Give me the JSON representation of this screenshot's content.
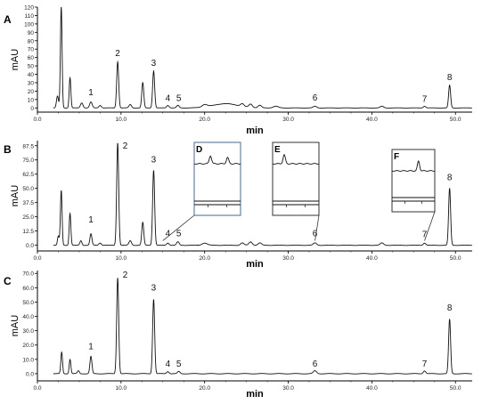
{
  "chart_data": [
    {
      "type": "line",
      "panel_label": "A",
      "xlabel": "min",
      "ylabel": "mAU",
      "xlim": [
        0,
        52
      ],
      "ylim": [
        -5,
        120
      ],
      "y_ticks": [
        "0",
        "10",
        "20",
        "30",
        "40",
        "50",
        "60",
        "70",
        "80",
        "90",
        "100",
        "110",
        "120"
      ],
      "y_tick_values": [
        0,
        10,
        20,
        30,
        40,
        50,
        60,
        70,
        80,
        90,
        100,
        110,
        120
      ],
      "x_ticks": [
        "0.0",
        "10.0",
        "20.0",
        "30.0",
        "40.0",
        "50.0"
      ],
      "x_tick_values": [
        0,
        10,
        20,
        30,
        40,
        50
      ],
      "peaks": [
        {
          "t": 2.4,
          "h": 14,
          "w": 0.12
        },
        {
          "t": 2.85,
          "h": 120,
          "w": 0.1
        },
        {
          "t": 3.9,
          "h": 36,
          "w": 0.1
        },
        {
          "t": 5.3,
          "h": 6,
          "w": 0.15
        },
        {
          "t": 6.4,
          "h": 7,
          "w": 0.15
        },
        {
          "t": 7.5,
          "h": 3,
          "w": 0.15
        },
        {
          "t": 9.6,
          "h": 55,
          "w": 0.12
        },
        {
          "t": 11.1,
          "h": 4,
          "w": 0.15
        },
        {
          "t": 12.6,
          "h": 30,
          "w": 0.12
        },
        {
          "t": 13.9,
          "h": 44,
          "w": 0.12
        },
        {
          "t": 15.6,
          "h": 3,
          "w": 0.15
        },
        {
          "t": 16.8,
          "h": 3,
          "w": 0.15
        },
        {
          "t": 20.0,
          "h": 3,
          "w": 0.3
        },
        {
          "t": 22.5,
          "h": 5,
          "w": 1.5
        },
        {
          "t": 24.5,
          "h": 3,
          "w": 0.2
        },
        {
          "t": 25.5,
          "h": 4,
          "w": 0.2
        },
        {
          "t": 26.6,
          "h": 3,
          "w": 0.2
        },
        {
          "t": 28.5,
          "h": 2,
          "w": 0.3
        },
        {
          "t": 33.2,
          "h": 2,
          "w": 0.2
        },
        {
          "t": 41.2,
          "h": 2,
          "w": 0.2
        },
        {
          "t": 46.3,
          "h": 2,
          "w": 0.15
        },
        {
          "t": 49.3,
          "h": 27,
          "w": 0.12
        }
      ],
      "peak_labels": [
        {
          "label": "1",
          "t": 6.4,
          "y": 15
        },
        {
          "label": "2",
          "t": 9.6,
          "y": 62
        },
        {
          "label": "3",
          "t": 13.9,
          "y": 50
        },
        {
          "label": "4",
          "t": 15.6,
          "y": 8
        },
        {
          "label": "5",
          "t": 16.9,
          "y": 8
        },
        {
          "label": "6",
          "t": 33.2,
          "y": 9
        },
        {
          "label": "7",
          "t": 46.3,
          "y": 7
        },
        {
          "label": "8",
          "t": 49.3,
          "y": 33
        }
      ]
    },
    {
      "type": "line",
      "panel_label": "B",
      "xlabel": "min",
      "ylabel": "mAU",
      "xlim": [
        0,
        52
      ],
      "ylim": [
        -5,
        92
      ],
      "y_ticks": [
        "0.0",
        "12.5",
        "25.0",
        "37.5",
        "50.0",
        "62.5",
        "75.0",
        "87.5"
      ],
      "y_tick_values": [
        0,
        12.5,
        25,
        37.5,
        50,
        62.5,
        75,
        87.5
      ],
      "x_ticks": [
        "0.0",
        "10.0",
        "20.0",
        "30.0",
        "40.0",
        "50.0"
      ],
      "x_tick_values": [
        0,
        10,
        20,
        30,
        40,
        50
      ],
      "peaks": [
        {
          "t": 2.5,
          "h": 8,
          "w": 0.1
        },
        {
          "t": 2.85,
          "h": 48,
          "w": 0.1
        },
        {
          "t": 3.9,
          "h": 28,
          "w": 0.1
        },
        {
          "t": 5.2,
          "h": 4,
          "w": 0.12
        },
        {
          "t": 6.4,
          "h": 10,
          "w": 0.12
        },
        {
          "t": 7.5,
          "h": 2,
          "w": 0.15
        },
        {
          "t": 9.6,
          "h": 90,
          "w": 0.12
        },
        {
          "t": 11.1,
          "h": 4,
          "w": 0.15
        },
        {
          "t": 12.6,
          "h": 20,
          "w": 0.12
        },
        {
          "t": 13.9,
          "h": 66,
          "w": 0.12
        },
        {
          "t": 15.6,
          "h": 2,
          "w": 0.15
        },
        {
          "t": 16.8,
          "h": 3,
          "w": 0.15
        },
        {
          "t": 20.0,
          "h": 2,
          "w": 0.3
        },
        {
          "t": 24.5,
          "h": 2,
          "w": 0.2
        },
        {
          "t": 25.5,
          "h": 3,
          "w": 0.2
        },
        {
          "t": 26.6,
          "h": 2,
          "w": 0.2
        },
        {
          "t": 33.2,
          "h": 2,
          "w": 0.2
        },
        {
          "t": 41.2,
          "h": 2,
          "w": 0.2
        },
        {
          "t": 46.3,
          "h": 2,
          "w": 0.15
        },
        {
          "t": 49.3,
          "h": 50,
          "w": 0.12
        }
      ],
      "peak_labels": [
        {
          "label": "1",
          "t": 6.4,
          "y": 20
        },
        {
          "label": "2",
          "t": 10.5,
          "y": 85
        },
        {
          "label": "3",
          "t": 13.9,
          "y": 73
        },
        {
          "label": "4",
          "t": 15.6,
          "y": 8
        },
        {
          "label": "5",
          "t": 16.9,
          "y": 8
        },
        {
          "label": "6",
          "t": 33.2,
          "y": 8
        },
        {
          "label": "7",
          "t": 46.3,
          "y": 7
        },
        {
          "label": "8",
          "t": 49.3,
          "y": 57
        }
      ],
      "insets": [
        {
          "label": "D",
          "anchor_t": 15.0
        },
        {
          "label": "E",
          "anchor_t": 33.2
        },
        {
          "label": "F",
          "anchor_t": 46.3
        }
      ]
    },
    {
      "type": "line",
      "panel_label": "C",
      "xlabel": "min",
      "ylabel": "mAU",
      "xlim": [
        0,
        52
      ],
      "ylim": [
        -5,
        72
      ],
      "y_ticks": [
        "0.0",
        "10.0",
        "20.0",
        "30.0",
        "40.0",
        "50.0",
        "60.0",
        "70.0"
      ],
      "y_tick_values": [
        0,
        10,
        20,
        30,
        40,
        50,
        60,
        70
      ],
      "x_ticks": [
        "0.0",
        "10.0",
        "20.0",
        "30.0",
        "40.0",
        "50.0"
      ],
      "x_tick_values": [
        0,
        10,
        20,
        30,
        40,
        50
      ],
      "peaks": [
        {
          "t": 2.9,
          "h": 15,
          "w": 0.1
        },
        {
          "t": 3.9,
          "h": 10,
          "w": 0.1
        },
        {
          "t": 4.9,
          "h": 2,
          "w": 0.12
        },
        {
          "t": 6.4,
          "h": 12,
          "w": 0.12
        },
        {
          "t": 9.6,
          "h": 67,
          "w": 0.12
        },
        {
          "t": 13.9,
          "h": 52,
          "w": 0.12
        },
        {
          "t": 15.6,
          "h": 1.5,
          "w": 0.15
        },
        {
          "t": 16.9,
          "h": 1.5,
          "w": 0.15
        },
        {
          "t": 33.2,
          "h": 2,
          "w": 0.2
        },
        {
          "t": 46.3,
          "h": 2,
          "w": 0.15
        },
        {
          "t": 49.3,
          "h": 38,
          "w": 0.12
        }
      ],
      "peak_labels": [
        {
          "label": "1",
          "t": 6.4,
          "y": 17
        },
        {
          "label": "2",
          "t": 10.5,
          "y": 67
        },
        {
          "label": "3",
          "t": 13.9,
          "y": 58
        },
        {
          "label": "4",
          "t": 15.6,
          "y": 5
        },
        {
          "label": "5",
          "t": 16.9,
          "y": 5
        },
        {
          "label": "6",
          "t": 33.2,
          "y": 5
        },
        {
          "label": "7",
          "t": 46.3,
          "y": 5
        },
        {
          "label": "8",
          "t": 49.3,
          "y": 44
        }
      ]
    }
  ]
}
